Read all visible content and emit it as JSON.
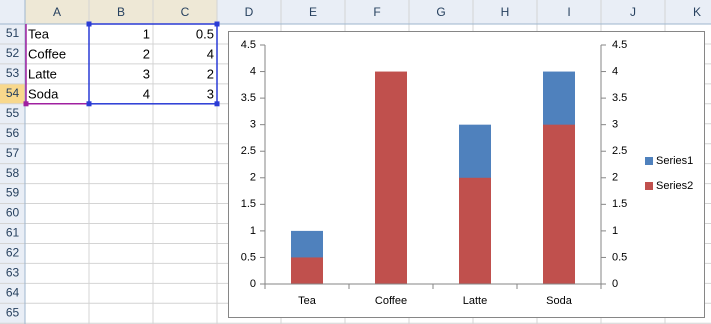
{
  "sheet": {
    "columns": [
      "A",
      "B",
      "C",
      "D",
      "E",
      "F",
      "G",
      "H",
      "I",
      "J",
      "K"
    ],
    "rows": [
      51,
      52,
      53,
      54,
      55,
      56,
      57,
      58,
      59,
      60,
      61,
      62,
      63,
      64,
      65
    ]
  },
  "chart_data": {
    "type": "bar",
    "categories": [
      "Tea",
      "Coffee",
      "Latte",
      "Soda"
    ],
    "series": [
      {
        "name": "Series1",
        "color": "#4f81bd",
        "values": [
          1,
          2,
          3,
          4
        ]
      },
      {
        "name": "Series2",
        "color": "#c0504d",
        "values": [
          0.5,
          4,
          2,
          3
        ],
        "axis": "y2"
      }
    ],
    "ylim": [
      0,
      4.5
    ],
    "yticks": [
      0,
      0.5,
      1,
      1.5,
      2,
      2.5,
      3,
      3.5,
      4,
      4.5
    ],
    "y2lim": [
      0,
      4.5
    ],
    "y2ticks": [
      0,
      0.5,
      1,
      1.5,
      2,
      2.5,
      3,
      3.5,
      4,
      4.5
    ],
    "grid": false,
    "legend": "right"
  }
}
